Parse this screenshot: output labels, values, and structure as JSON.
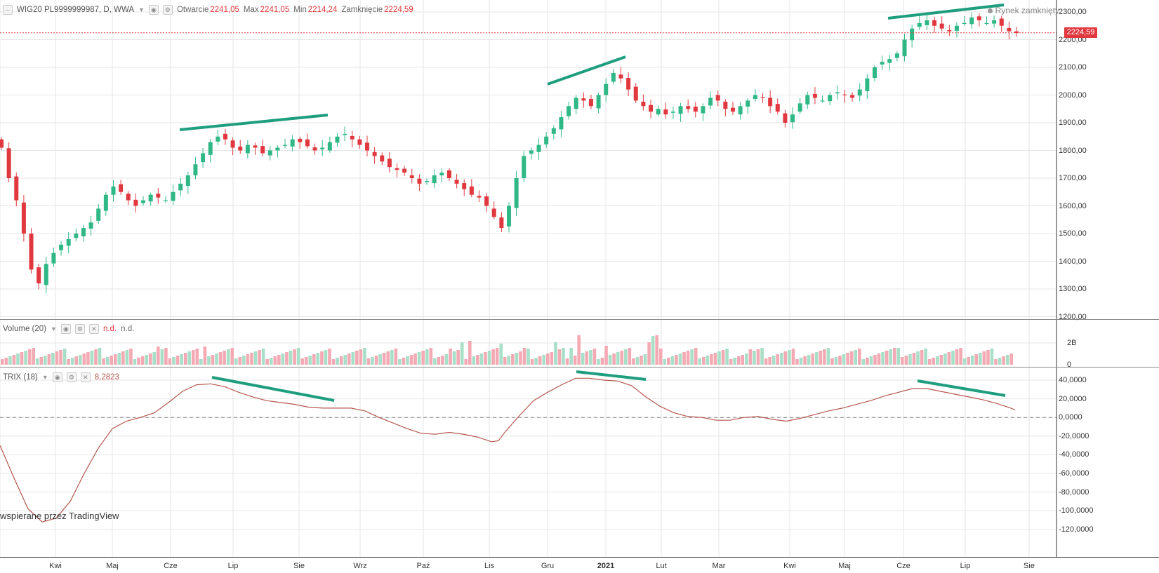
{
  "main_legend": {
    "symbol": "WIG20 PL9999999987, D, WWA",
    "open_label": "Otwarcie",
    "open_value": "2241,05",
    "max_label": "Max",
    "max_value": "2241,05",
    "min_label": "Min",
    "min_value": "2214,24",
    "close_label": "Zamknięcie",
    "close_value": "2224,59"
  },
  "market_status": "Rynek zamknięty",
  "price_tag": "2224,59",
  "price_axis": [
    "2300,00",
    "2200,00",
    "2100,00",
    "2000,00",
    "1900,00",
    "1800,00",
    "1700,00",
    "1600,00",
    "1500,00",
    "1400,00",
    "1300,00",
    "1200,00"
  ],
  "volume": {
    "label": "Volume (20)",
    "value": "n.d.",
    "value2": "n.d.",
    "axis": [
      "2B",
      "0"
    ]
  },
  "trix": {
    "label": "TRIX (18)",
    "value": "8,2823",
    "axis": [
      "40,0000",
      "20,0000",
      "0,0000",
      "-20,0000",
      "-40,0000",
      "-60,0000",
      "-80,0000",
      "-100,0000",
      "-120,0000"
    ]
  },
  "time_axis": [
    "Kwi",
    "Maj",
    "Cze",
    "Lip",
    "Sie",
    "Wrz",
    "Paź",
    "Lis",
    "Gru",
    "2021",
    "Lut",
    "Mar",
    "Kwi",
    "Maj",
    "Cze",
    "Lip",
    "Sie"
  ],
  "watermark": "wspierane przez TradingView",
  "colors": {
    "up": "#2fb886",
    "down": "#e0383e",
    "vol_up": "#a8dfc7",
    "vol_down": "#f4aab4",
    "trend": "#1e9e7e",
    "trix_line": "#b5574f",
    "grid": "#e6e6e6"
  },
  "chart_data": {
    "type": "candlestick",
    "ylim": [
      1200,
      2300
    ],
    "trendlines_on_price": [
      {
        "from": [
          1870,
          1855
        ],
        "to": [
          1925,
          1925
        ]
      },
      {
        "from": [
          2040,
          2040
        ],
        "to": [
          2135,
          2135
        ]
      },
      {
        "from": [
          2275,
          2275
        ],
        "to": [
          2320,
          2320
        ]
      }
    ],
    "close_series": [
      1810,
      1700,
      1620,
      1500,
      1370,
      1320,
      1390,
      1430,
      1460,
      1480,
      1500,
      1520,
      1540,
      1590,
      1640,
      1670,
      1650,
      1620,
      1600,
      1620,
      1640,
      1630,
      1620,
      1650,
      1680,
      1710,
      1750,
      1790,
      1830,
      1850,
      1840,
      1810,
      1800,
      1820,
      1810,
      1790,
      1800,
      1810,
      1820,
      1840,
      1830,
      1815,
      1800,
      1810,
      1830,
      1850,
      1860,
      1840,
      1820,
      1800,
      1780,
      1760,
      1740,
      1730,
      1720,
      1700,
      1680,
      1690,
      1710,
      1720,
      1700,
      1680,
      1660,
      1640,
      1630,
      1600,
      1560,
      1520,
      1600,
      1700,
      1780,
      1800,
      1820,
      1850,
      1880,
      1920,
      1960,
      1990,
      1980,
      1960,
      2000,
      2040,
      2080,
      2060,
      2020,
      1980,
      1960,
      1940,
      1950,
      1930,
      1940,
      1960,
      1950,
      1940,
      1960,
      1990,
      1980,
      1950,
      1940,
      1960,
      1980,
      2000,
      1990,
      1960,
      1940,
      1900,
      1930,
      1970,
      2000,
      1990,
      1980,
      2000,
      2010,
      2000,
      1990,
      2020,
      2060,
      2100,
      2120,
      2130,
      2150,
      2200,
      2240,
      2260,
      2270,
      2250,
      2240,
      2230,
      2250,
      2260,
      2280,
      2270,
      2260,
      2270,
      2250,
      2230,
      2224
    ]
  }
}
